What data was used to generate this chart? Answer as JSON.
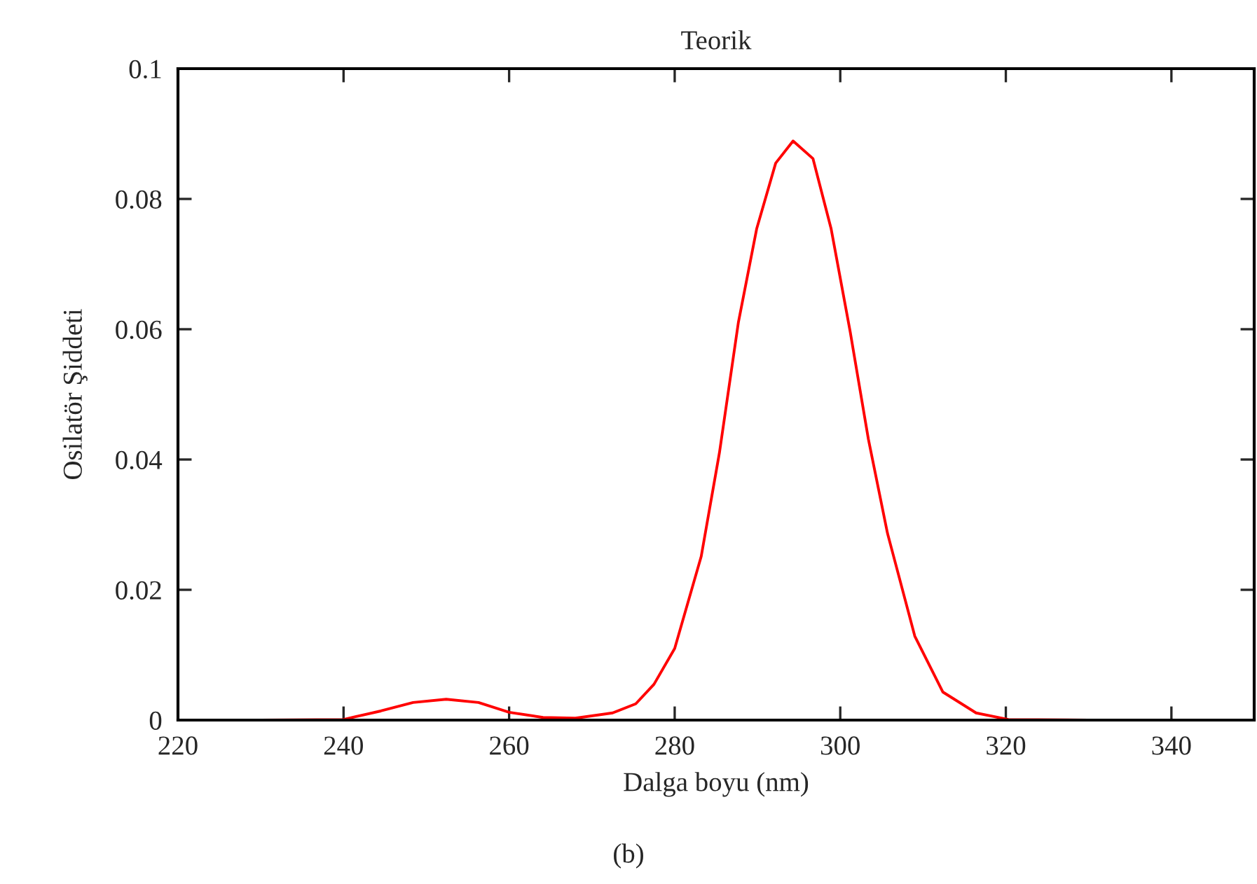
{
  "chart_data": {
    "type": "line",
    "title": "Teorik",
    "xlabel": "Dalga boyu (nm)",
    "ylabel": "Osilatör Şiddeti",
    "annotations": [
      "(b)"
    ],
    "series": [
      {
        "color": "#ff0000",
        "x": [
          220,
          230,
          240,
          244.5,
          248.4,
          252.4,
          256.3,
          260,
          264.1,
          268,
          272.5,
          275.3,
          277.5,
          280,
          283.2,
          285.4,
          287.7,
          289.9,
          292.2,
          294.3,
          296.7,
          298.9,
          301.2,
          303.4,
          305.7,
          309,
          312.4,
          316.4,
          320.3,
          330,
          350
        ],
        "values": [
          0,
          0,
          0.0001,
          0.0014,
          0.0027,
          0.0032,
          0.0027,
          0.0012,
          0.0004,
          0.0003,
          0.0011,
          0.0025,
          0.0055,
          0.011,
          0.0251,
          0.041,
          0.0611,
          0.0754,
          0.0855,
          0.0889,
          0.0862,
          0.0754,
          0.0596,
          0.0431,
          0.0287,
          0.0129,
          0.0043,
          0.0011,
          0.0001,
          0,
          0
        ]
      }
    ],
    "xlim": [
      220,
      350
    ],
    "xticks": [
      220,
      240,
      260,
      280,
      300,
      320,
      340
    ],
    "ylim": [
      0,
      0.1
    ],
    "yticks": [
      0,
      0.02,
      0.04,
      0.06,
      0.08,
      0.1
    ],
    "grid": false,
    "legend": false,
    "line_style": "solid",
    "marker": "none"
  }
}
